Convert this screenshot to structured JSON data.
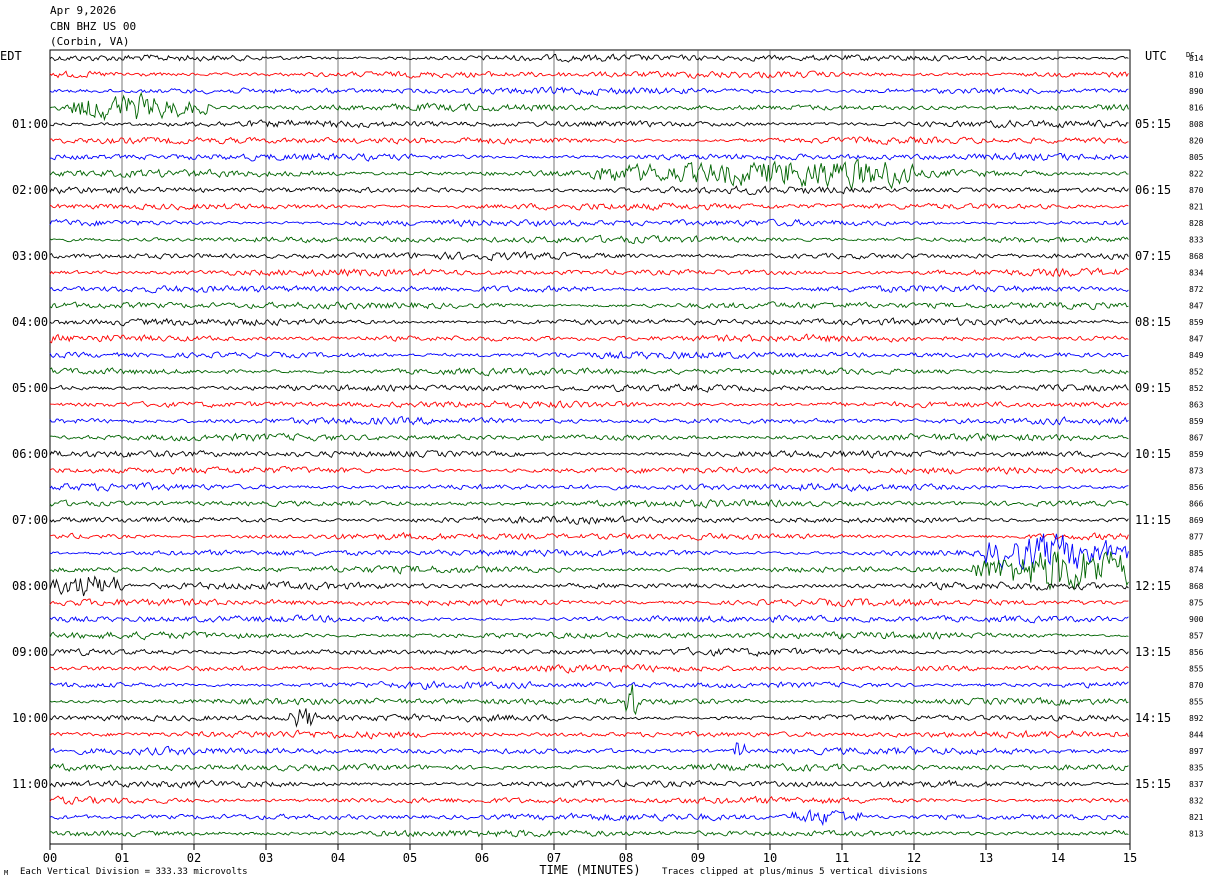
{
  "header": {
    "date": "Apr 9,2026",
    "station": "CBN BHZ US 00",
    "location": "(Corbin, VA)"
  },
  "chart_data": {
    "type": "line",
    "title": "Apr 9,2026 CBN BHZ US 00 (Corbin, VA)",
    "left_axis_label": "EDT",
    "right_axis_label": "UTC",
    "dc_label": "DC",
    "xlabel": "TIME (MINUTES)",
    "xlim": [
      0,
      15
    ],
    "x_ticks": [
      "00",
      "01",
      "02",
      "03",
      "04",
      "05",
      "06",
      "07",
      "08",
      "09",
      "10",
      "11",
      "12",
      "13",
      "14",
      "15"
    ],
    "minutes_per_trace": 15,
    "trace_colors": [
      "#000000",
      "#ff0000",
      "#0000ff",
      "#006400"
    ],
    "left_time_labels": [
      {
        "trace": 4,
        "label": "01:00"
      },
      {
        "trace": 8,
        "label": "02:00"
      },
      {
        "trace": 12,
        "label": "03:00"
      },
      {
        "trace": 16,
        "label": "04:00"
      },
      {
        "trace": 20,
        "label": "05:00"
      },
      {
        "trace": 24,
        "label": "06:00"
      },
      {
        "trace": 28,
        "label": "07:00"
      },
      {
        "trace": 32,
        "label": "08:00"
      },
      {
        "trace": 36,
        "label": "09:00"
      },
      {
        "trace": 40,
        "label": "10:00"
      },
      {
        "trace": 44,
        "label": "11:00"
      }
    ],
    "right_time_labels": [
      {
        "trace": 4,
        "label": "05:15"
      },
      {
        "trace": 8,
        "label": "06:15"
      },
      {
        "trace": 12,
        "label": "07:15"
      },
      {
        "trace": 16,
        "label": "08:15"
      },
      {
        "trace": 20,
        "label": "09:15"
      },
      {
        "trace": 24,
        "label": "10:15"
      },
      {
        "trace": 28,
        "label": "11:15"
      },
      {
        "trace": 32,
        "label": "12:15"
      },
      {
        "trace": 36,
        "label": "13:15"
      },
      {
        "trace": 40,
        "label": "14:15"
      },
      {
        "trace": 44,
        "label": "15:15"
      }
    ],
    "dc_offsets": [
      "814",
      "810",
      "890",
      "816",
      "808",
      "820",
      "805",
      "822",
      "870",
      "821",
      "828",
      "833",
      "868",
      "834",
      "872",
      "847",
      "859",
      "847",
      "849",
      "852",
      "852",
      "863",
      "859",
      "867",
      "859",
      "873",
      "856",
      "866",
      "869",
      "877",
      "885",
      "874",
      "868",
      "875",
      "900",
      "857",
      "856",
      "855",
      "870",
      "855",
      "892",
      "844",
      "897",
      "835",
      "837",
      "832",
      "821",
      "813"
    ],
    "notable_events": [
      {
        "trace": 3,
        "minute_start": 0.3,
        "minute_end": 2.2,
        "amplitude": 2.3
      },
      {
        "trace": 7,
        "minute_start": 7.5,
        "minute_end": 12.0,
        "amplitude": 2.0
      },
      {
        "trace": 30,
        "minute_start": 13.0,
        "minute_end": 15.0,
        "amplitude": 2.5
      },
      {
        "trace": 31,
        "minute_start": 12.8,
        "minute_end": 15.0,
        "amplitude": 3.0
      },
      {
        "trace": 32,
        "minute_start": 0.0,
        "minute_end": 1.0,
        "amplitude": 3.0
      },
      {
        "trace": 39,
        "minute_start": 8.0,
        "minute_end": 8.15,
        "amplitude": 3.0
      },
      {
        "trace": 40,
        "minute_start": 3.3,
        "minute_end": 3.7,
        "amplitude": 2.0
      },
      {
        "trace": 42,
        "minute_start": 9.5,
        "minute_end": 9.65,
        "amplitude": 3.0
      },
      {
        "trace": 46,
        "minute_start": 10.3,
        "minute_end": 11.3,
        "amplitude": 1.8
      }
    ],
    "footer_left": "Each Vertical Division =  333.33 microvolts",
    "footer_right": "Traces clipped at plus/minus 5 vertical divisions",
    "corner_mark": "M"
  }
}
